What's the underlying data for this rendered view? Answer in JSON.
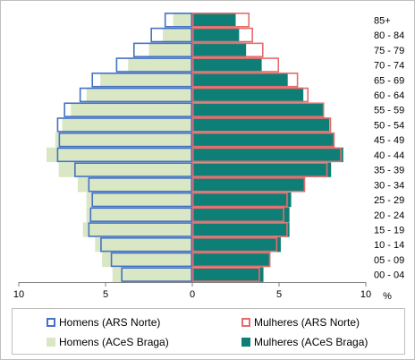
{
  "chart_data": {
    "type": "bar",
    "orientation": "horizontal-population-pyramid",
    "categories": [
      "00 - 04",
      "05 - 09",
      "10 - 14",
      "15 - 19",
      "20 - 24",
      "25 - 29",
      "30 - 34",
      "35 - 39",
      "40 - 44",
      "45 - 49",
      "50 - 54",
      "55 - 59",
      "60 - 64",
      "65 - 69",
      "70 - 74",
      "75 - 79",
      "80 - 84",
      "85+"
    ],
    "x_ticks": [
      "10",
      "5",
      "0",
      "5",
      "10"
    ],
    "x_unit": "%",
    "xlim": [
      -10,
      10
    ],
    "series": [
      {
        "name": "Homens (ARS Norte)",
        "side": "left",
        "style": "outline",
        "color": "#4472c4",
        "values": [
          4.1,
          4.7,
          5.3,
          6.0,
          5.9,
          5.8,
          6.0,
          6.8,
          7.8,
          7.7,
          7.8,
          7.4,
          6.5,
          5.8,
          4.4,
          3.4,
          2.4,
          1.6
        ]
      },
      {
        "name": "Mulheres (ARS Norte)",
        "side": "right",
        "style": "outline",
        "color": "#e46c6c",
        "values": [
          3.9,
          4.5,
          4.9,
          5.5,
          5.3,
          5.5,
          6.5,
          7.8,
          8.6,
          8.2,
          8.0,
          7.6,
          6.7,
          6.1,
          5.0,
          4.1,
          3.5,
          3.3
        ]
      },
      {
        "name": "Homens (ACeS Braga)",
        "side": "left",
        "style": "fill",
        "color": "#d9e7c4",
        "values": [
          4.6,
          5.2,
          5.6,
          6.3,
          6.1,
          6.1,
          6.6,
          7.7,
          8.4,
          7.9,
          7.5,
          7.0,
          6.1,
          5.3,
          3.7,
          2.5,
          1.7,
          1.1
        ]
      },
      {
        "name": "Mulheres (ACeS Braga)",
        "side": "right",
        "style": "fill",
        "color": "#0e7f76",
        "values": [
          4.1,
          4.5,
          5.1,
          5.6,
          5.6,
          5.7,
          6.5,
          8.0,
          8.7,
          8.2,
          7.9,
          7.6,
          6.4,
          5.5,
          4.0,
          3.1,
          2.7,
          2.5
        ]
      }
    ],
    "legend": {
      "position": "bottom",
      "rows": [
        [
          "Homens (ARS Norte)",
          "Mulheres (ARS Norte)"
        ],
        [
          "Homens (ACeS Braga)",
          "Mulheres (ACeS Braga)"
        ]
      ]
    }
  }
}
